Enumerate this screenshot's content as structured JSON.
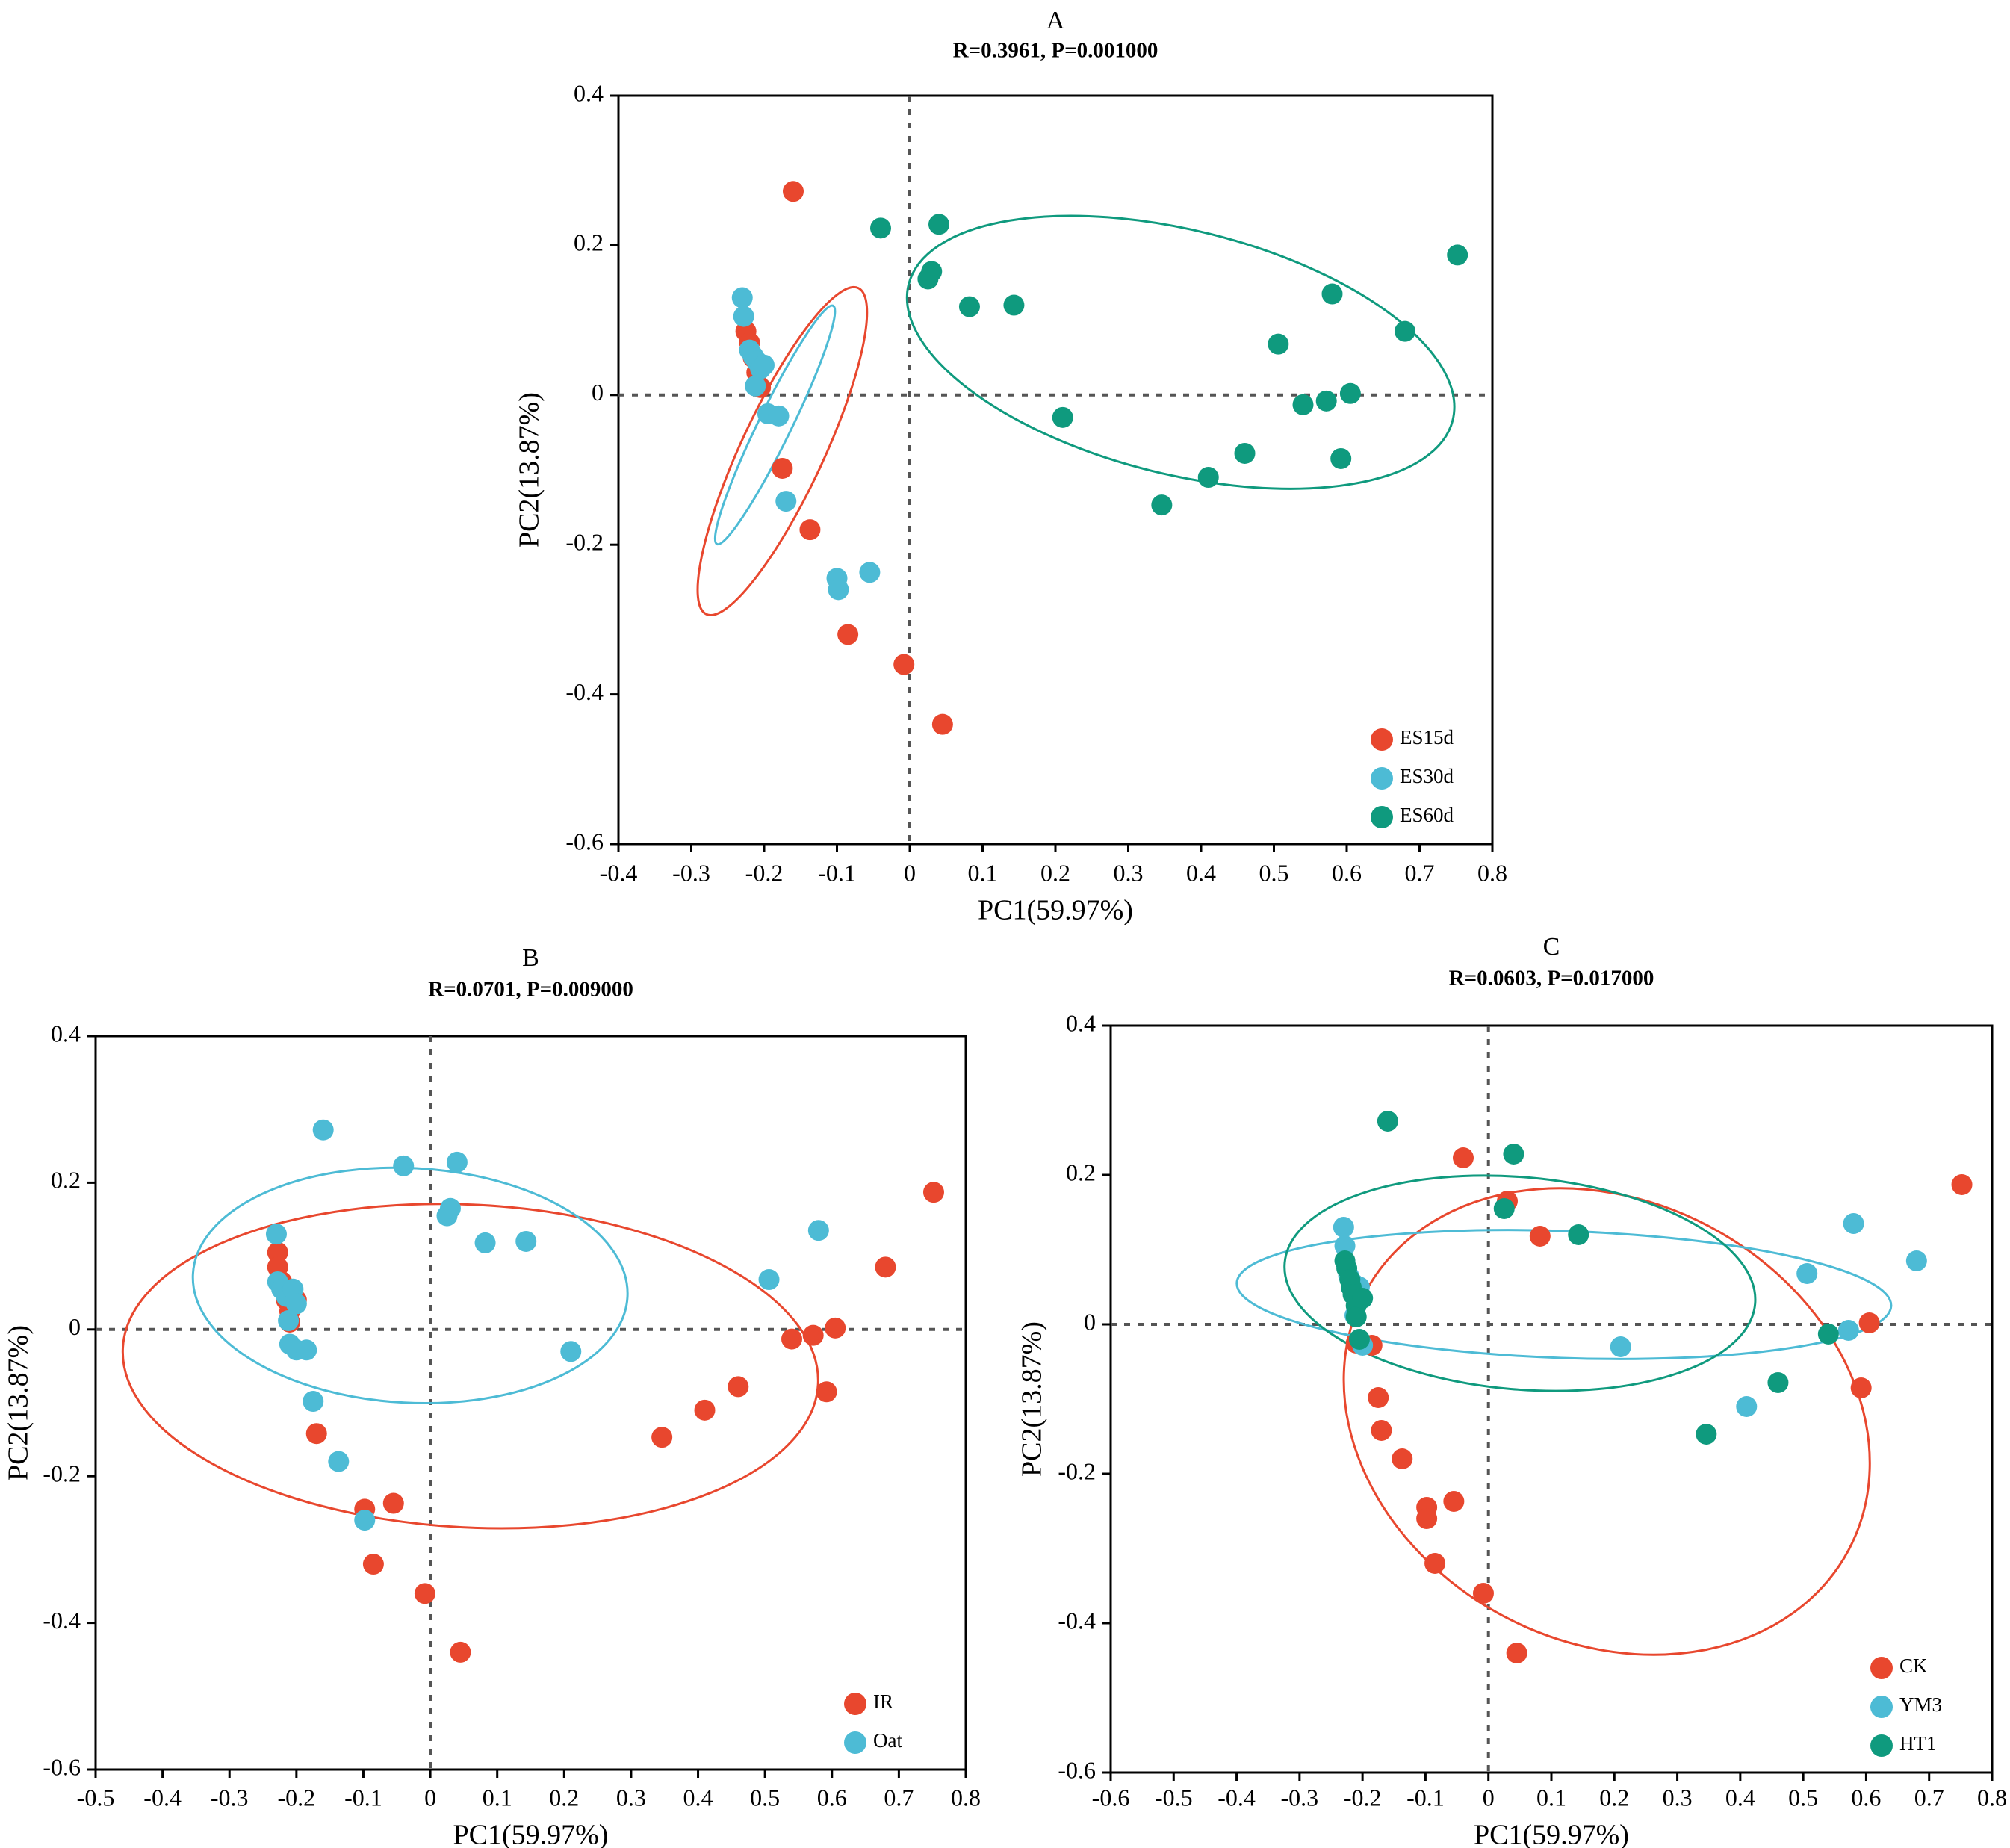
{
  "colors": {
    "red": "#E8472E",
    "blue": "#4DBBD5",
    "green": "#0F9A7E"
  },
  "chart_data": [
    {
      "type": "scatter",
      "panel": "A",
      "title": "A",
      "subtitle": "R=0.3961, P=0.001000",
      "xlabel": "PC1(59.97%)",
      "ylabel": "PC2(13.87%)",
      "xlim": [
        -0.4,
        0.8
      ],
      "ylim": [
        -0.6,
        0.4
      ],
      "xticks": [
        -0.4,
        -0.3,
        -0.2,
        -0.1,
        0,
        0.1,
        0.2,
        0.3,
        0.4,
        0.5,
        0.6,
        0.7,
        0.8
      ],
      "yticks": [
        -0.6,
        -0.4,
        -0.2,
        0,
        0.2,
        0.4
      ],
      "xtick_labels": [
        "-0.4",
        "-0.3",
        "-0.2",
        "-0.1",
        "0",
        "0.1",
        "0.2",
        "0.3",
        "0.4",
        "0.5",
        "0.6",
        "0.7",
        "0.8"
      ],
      "ytick_labels": [
        "-0.6",
        "-0.4",
        "-0.2",
        "0",
        "0.2",
        "0.4"
      ],
      "legend_position": "bottom-right",
      "series": [
        {
          "name": "ES15d",
          "color": "red",
          "points": [
            [
              -0.16,
              0.272
            ],
            [
              -0.225,
              0.085
            ],
            [
              -0.22,
              0.07
            ],
            [
              -0.215,
              0.05
            ],
            [
              -0.21,
              0.03
            ],
            [
              -0.205,
              0.01
            ],
            [
              -0.175,
              -0.098
            ],
            [
              -0.137,
              -0.18
            ],
            [
              -0.085,
              -0.32
            ],
            [
              -0.008,
              -0.36
            ],
            [
              0.045,
              -0.44
            ]
          ]
        },
        {
          "name": "ES30d",
          "color": "blue",
          "points": [
            [
              -0.23,
              0.13
            ],
            [
              -0.228,
              0.105
            ],
            [
              -0.22,
              0.06
            ],
            [
              -0.215,
              0.052
            ],
            [
              -0.21,
              0.045
            ],
            [
              -0.205,
              0.035
            ],
            [
              -0.2,
              0.04
            ],
            [
              -0.212,
              0.012
            ],
            [
              -0.195,
              -0.025
            ],
            [
              -0.18,
              -0.028
            ],
            [
              -0.17,
              -0.142
            ],
            [
              -0.1,
              -0.245
            ],
            [
              -0.098,
              -0.26
            ],
            [
              -0.055,
              -0.237
            ]
          ]
        },
        {
          "name": "ES60d",
          "color": "green",
          "points": [
            [
              -0.04,
              0.223
            ],
            [
              0.04,
              0.228
            ],
            [
              0.025,
              0.155
            ],
            [
              0.03,
              0.165
            ],
            [
              0.082,
              0.118
            ],
            [
              0.143,
              0.12
            ],
            [
              0.21,
              -0.03
            ],
            [
              0.346,
              -0.147
            ],
            [
              0.41,
              -0.11
            ],
            [
              0.46,
              -0.078
            ],
            [
              0.506,
              0.068
            ],
            [
              0.54,
              -0.013
            ],
            [
              0.572,
              -0.008
            ],
            [
              0.58,
              0.135
            ],
            [
              0.592,
              -0.085
            ],
            [
              0.605,
              0.002
            ],
            [
              0.68,
              0.085
            ],
            [
              0.752,
              0.187
            ]
          ]
        }
      ],
      "ellipses": [
        {
          "color": "red",
          "cx": -0.175,
          "cy": -0.075,
          "a": 0.247,
          "b": 0.055,
          "angle_deg": 65
        },
        {
          "color": "blue",
          "cx": -0.185,
          "cy": -0.04,
          "a": 0.182,
          "b": 0.022,
          "angle_deg": 64
        },
        {
          "color": "green",
          "cx": 0.372,
          "cy": 0.057,
          "a": 0.385,
          "b": 0.163,
          "angle_deg": -14
        }
      ]
    },
    {
      "type": "scatter",
      "panel": "B",
      "title": "B",
      "subtitle": "R=0.0701, P=0.009000",
      "xlabel": "PC1(59.97%)",
      "ylabel": "PC2(13.87%)",
      "xlim": [
        -0.5,
        0.8
      ],
      "ylim": [
        -0.6,
        0.4
      ],
      "xticks": [
        -0.5,
        -0.4,
        -0.3,
        -0.2,
        -0.1,
        0,
        0.1,
        0.2,
        0.3,
        0.4,
        0.5,
        0.6,
        0.7,
        0.8
      ],
      "yticks": [
        -0.6,
        -0.4,
        -0.2,
        0,
        0.2,
        0.4
      ],
      "xtick_labels": [
        "-0.5",
        "-0.4",
        "-0.3",
        "-0.2",
        "-0.1",
        "0",
        "0.1",
        "0.2",
        "0.3",
        "0.4",
        "0.5",
        "0.6",
        "0.7",
        "0.8"
      ],
      "ytick_labels": [
        "-0.6",
        "-0.4",
        "-0.2",
        "0",
        "0.2",
        "0.4"
      ],
      "legend_position": "bottom-right",
      "series": [
        {
          "name": "IR",
          "color": "red",
          "points": [
            [
              -0.228,
              0.105
            ],
            [
              -0.228,
              0.085
            ],
            [
              -0.222,
              0.065
            ],
            [
              -0.218,
              0.055
            ],
            [
              -0.215,
              0.04
            ],
            [
              -0.21,
              0.025
            ],
            [
              -0.2,
              0.04
            ],
            [
              -0.21,
              0.01
            ],
            [
              -0.17,
              -0.142
            ],
            [
              -0.098,
              -0.245
            ],
            [
              -0.055,
              -0.237
            ],
            [
              -0.085,
              -0.32
            ],
            [
              -0.008,
              -0.36
            ],
            [
              0.045,
              -0.44
            ],
            [
              0.346,
              -0.147
            ],
            [
              0.41,
              -0.11
            ],
            [
              0.46,
              -0.078
            ],
            [
              0.54,
              -0.013
            ],
            [
              0.572,
              -0.008
            ],
            [
              0.592,
              -0.085
            ],
            [
              0.605,
              0.002
            ],
            [
              0.68,
              0.085
            ],
            [
              0.752,
              0.187
            ]
          ]
        },
        {
          "name": "Oat",
          "color": "blue",
          "points": [
            [
              -0.16,
              0.272
            ],
            [
              -0.23,
              0.13
            ],
            [
              -0.228,
              0.065
            ],
            [
              -0.222,
              0.055
            ],
            [
              -0.215,
              0.045
            ],
            [
              -0.205,
              0.055
            ],
            [
              -0.2,
              0.035
            ],
            [
              -0.212,
              0.012
            ],
            [
              -0.21,
              -0.02
            ],
            [
              -0.2,
              -0.028
            ],
            [
              -0.185,
              -0.028
            ],
            [
              -0.175,
              -0.098
            ],
            [
              -0.137,
              -0.18
            ],
            [
              -0.098,
              -0.26
            ],
            [
              -0.04,
              0.223
            ],
            [
              0.04,
              0.228
            ],
            [
              0.025,
              0.155
            ],
            [
              0.03,
              0.165
            ],
            [
              0.082,
              0.118
            ],
            [
              0.143,
              0.12
            ],
            [
              0.21,
              -0.03
            ],
            [
              0.506,
              0.068
            ],
            [
              0.58,
              0.135
            ]
          ]
        }
      ],
      "ellipses": [
        {
          "color": "red",
          "cx": 0.06,
          "cy": -0.05,
          "a": 0.52,
          "b": 0.22,
          "angle_deg": -3
        },
        {
          "color": "blue",
          "cx": -0.03,
          "cy": 0.06,
          "a": 0.325,
          "b": 0.16,
          "angle_deg": -3
        }
      ]
    },
    {
      "type": "scatter",
      "panel": "C",
      "title": "C",
      "subtitle": "R=0.0603, P=0.017000",
      "xlabel": "PC1(59.97%)",
      "ylabel": "PC2(13.87%)",
      "xlim": [
        -0.6,
        0.8
      ],
      "ylim": [
        -0.6,
        0.4
      ],
      "xticks": [
        -0.6,
        -0.5,
        -0.4,
        -0.3,
        -0.2,
        -0.1,
        0,
        0.1,
        0.2,
        0.3,
        0.4,
        0.5,
        0.6,
        0.7,
        0.8
      ],
      "yticks": [
        -0.6,
        -0.4,
        -0.2,
        0,
        0.2,
        0.4
      ],
      "xtick_labels": [
        "-0.6",
        "-0.5",
        "-0.4",
        "-0.3",
        "-0.2",
        "-0.1",
        "0",
        "0.1",
        "0.2",
        "0.3",
        "0.4",
        "0.5",
        "0.6",
        "0.7",
        "0.8"
      ],
      "ytick_labels": [
        "-0.6",
        "-0.4",
        "-0.2",
        "0",
        "0.2",
        "0.4"
      ],
      "legend_position": "bottom-right",
      "series": [
        {
          "name": "CK",
          "color": "red",
          "points": [
            [
              -0.04,
              0.223
            ],
            [
              0.03,
              0.165
            ],
            [
              0.082,
              0.118
            ],
            [
              -0.21,
              -0.025
            ],
            [
              -0.185,
              -0.028
            ],
            [
              -0.175,
              -0.098
            ],
            [
              -0.17,
              -0.142
            ],
            [
              -0.137,
              -0.18
            ],
            [
              -0.098,
              -0.245
            ],
            [
              -0.098,
              -0.26
            ],
            [
              -0.055,
              -0.237
            ],
            [
              -0.085,
              -0.32
            ],
            [
              -0.008,
              -0.36
            ],
            [
              0.045,
              -0.44
            ],
            [
              0.605,
              0.002
            ],
            [
              0.592,
              -0.085
            ],
            [
              0.752,
              0.187
            ]
          ]
        },
        {
          "name": "YM3",
          "color": "blue",
          "points": [
            [
              -0.23,
              0.13
            ],
            [
              -0.228,
              0.105
            ],
            [
              -0.222,
              0.065
            ],
            [
              -0.215,
              0.055
            ],
            [
              -0.205,
              0.05
            ],
            [
              -0.2,
              0.035
            ],
            [
              -0.212,
              0.012
            ],
            [
              -0.2,
              -0.028
            ],
            [
              0.21,
              -0.03
            ],
            [
              0.41,
              -0.11
            ],
            [
              0.506,
              0.068
            ],
            [
              0.572,
              -0.008
            ],
            [
              0.58,
              0.135
            ],
            [
              0.68,
              0.085
            ]
          ]
        },
        {
          "name": "HT1",
          "color": "green",
          "points": [
            [
              -0.16,
              0.272
            ],
            [
              0.04,
              0.228
            ],
            [
              0.025,
              0.155
            ],
            [
              0.143,
              0.12
            ],
            [
              -0.228,
              0.085
            ],
            [
              -0.225,
              0.075
            ],
            [
              -0.22,
              0.06
            ],
            [
              -0.218,
              0.05
            ],
            [
              -0.215,
              0.04
            ],
            [
              -0.21,
              0.025
            ],
            [
              -0.21,
              0.01
            ],
            [
              -0.2,
              0.035
            ],
            [
              -0.205,
              -0.02
            ],
            [
              0.346,
              -0.147
            ],
            [
              0.46,
              -0.078
            ],
            [
              0.54,
              -0.013
            ]
          ]
        }
      ],
      "ellipses": [
        {
          "color": "red",
          "cx": 0.188,
          "cy": -0.13,
          "a": 0.435,
          "b": 0.295,
          "angle_deg": -28
        },
        {
          "color": "blue",
          "cx": 0.12,
          "cy": 0.04,
          "a": 0.52,
          "b": 0.085,
          "angle_deg": -2
        },
        {
          "color": "green",
          "cx": 0.05,
          "cy": 0.055,
          "a": 0.375,
          "b": 0.142,
          "angle_deg": -5
        }
      ]
    }
  ]
}
